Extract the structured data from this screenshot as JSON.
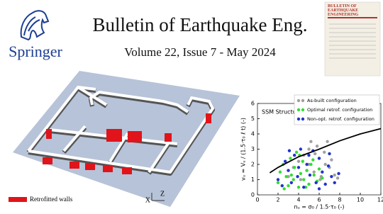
{
  "header": {
    "publisher": "Springer",
    "journal": "Bulletin of Earthquake Eng.",
    "issue": "Volume 22, Issue 7 - May 2024",
    "cover_title": "Bulletin of Earthquake Engineering"
  },
  "figure": {
    "legend": "Retrofitted walls",
    "axes": [
      "X",
      "Z"
    ]
  },
  "chart_data": {
    "type": "scatter",
    "title": "SSM Structure",
    "xlabel": "nᵤ = σ₀ / 1.5·τ₀ (-)",
    "ylabel": "vᵤ = Vᵤ / (1.5·τ₀ ℓ t) (-)",
    "xlim": [
      0,
      12
    ],
    "xticks": [
      0,
      2,
      4,
      6,
      8,
      10,
      12
    ],
    "ylim": [
      0,
      6
    ],
    "yticks": [
      0,
      1,
      2,
      3,
      4,
      5,
      6
    ],
    "legend": "upper right",
    "series": [
      {
        "name": "As-built configuration",
        "color": "#a0a0a0",
        "x": [
          3.0,
          3.5,
          4.0,
          4.2,
          4.5,
          5.0,
          5.2,
          5.5,
          5.8,
          6.0,
          6.2,
          6.5,
          6.8,
          7.0,
          7.2,
          7.5,
          5.0,
          5.6,
          6.1,
          4.8,
          6.6,
          7.8
        ],
        "values": [
          1.2,
          1.8,
          2.2,
          1.0,
          2.6,
          2.0,
          3.5,
          1.5,
          3.2,
          2.4,
          1.2,
          2.8,
          3.5,
          1.8,
          2.3,
          1.3,
          3.0,
          2.7,
          1.0,
          1.6,
          2.0,
          1.1
        ]
      },
      {
        "name": "Optimal retrof. configuration",
        "color": "#33dd33",
        "x": [
          2.0,
          2.2,
          2.5,
          2.8,
          3.0,
          3.2,
          3.5,
          3.6,
          3.8,
          4.0,
          4.2,
          4.4,
          4.5,
          4.8,
          5.0,
          5.2,
          5.5,
          5.8,
          6.0,
          6.3,
          2.6,
          3.3,
          4.1,
          4.7,
          5.4
        ],
        "values": [
          0.8,
          1.5,
          2.0,
          1.2,
          0.6,
          2.4,
          1.0,
          1.8,
          2.8,
          0.5,
          1.4,
          2.2,
          1.0,
          1.6,
          0.7,
          2.0,
          1.3,
          0.9,
          1.7,
          1.1,
          0.4,
          1.3,
          2.6,
          0.5,
          2.3
        ]
      },
      {
        "name": "Non-opt. retrof. configuration",
        "color": "#2233cc",
        "x": [
          2.0,
          2.4,
          2.7,
          3.0,
          3.3,
          3.6,
          3.9,
          4.2,
          4.5,
          4.8,
          5.1,
          5.4,
          5.7,
          6.0,
          6.3,
          6.6,
          6.9,
          7.2,
          7.5,
          7.9,
          3.1,
          4.0,
          5.0,
          6.0,
          7.0
        ],
        "values": [
          1.0,
          0.6,
          2.2,
          1.6,
          0.8,
          2.6,
          1.2,
          3.0,
          0.5,
          2.0,
          1.3,
          2.9,
          0.8,
          2.4,
          1.5,
          0.7,
          1.9,
          1.2,
          0.8,
          1.4,
          2.9,
          1.8,
          2.6,
          0.4,
          2.7
        ]
      }
    ],
    "curve": {
      "color": "#000000",
      "x": [
        1.2,
        2,
        4,
        6,
        8,
        10,
        12
      ],
      "values": [
        1.45,
        1.8,
        2.5,
        3.0,
        3.55,
        4.0,
        4.35
      ]
    }
  }
}
